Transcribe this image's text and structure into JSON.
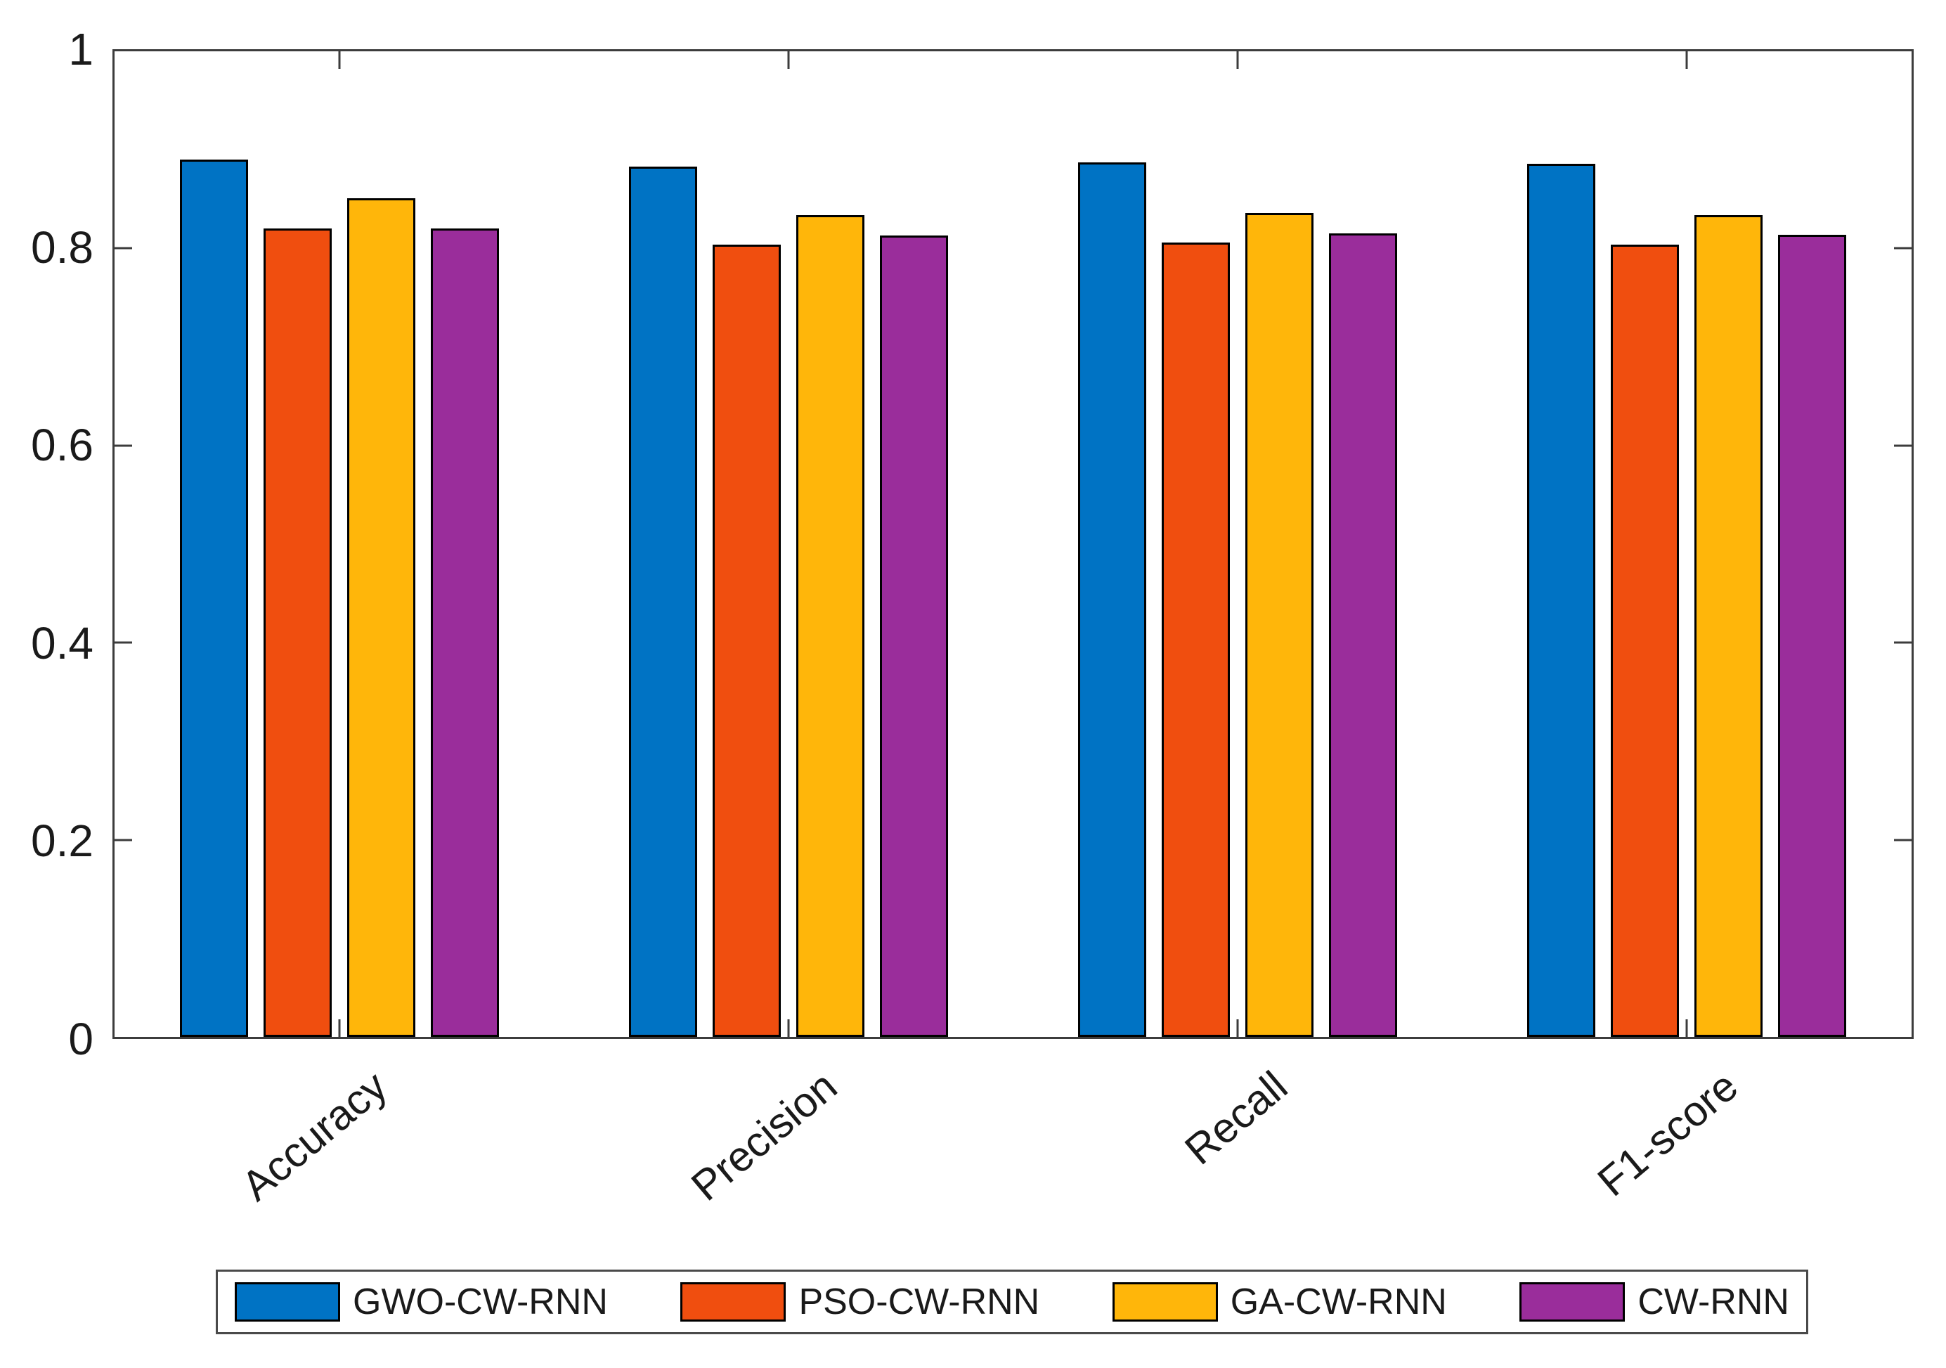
{
  "figure": {
    "background": "#ffffff"
  },
  "chart_data": {
    "type": "bar",
    "title": "",
    "xlabel": "",
    "ylabel": "",
    "categories": [
      "Accuracy",
      "Precision",
      "Recall",
      "F1-score"
    ],
    "series": [
      {
        "name": "GWO-CW-RNN",
        "color": "#0073C4",
        "values": [
          0.89,
          0.883,
          0.887,
          0.886
        ]
      },
      {
        "name": "PSO-CW-RNN",
        "color": "#F04E0F",
        "values": [
          0.82,
          0.804,
          0.806,
          0.804
        ]
      },
      {
        "name": "GA-CW-RNN",
        "color": "#FFB60A",
        "values": [
          0.851,
          0.834,
          0.836,
          0.834
        ]
      },
      {
        "name": "CW-RNN",
        "color": "#9A2D9B",
        "values": [
          0.82,
          0.813,
          0.815,
          0.814
        ]
      }
    ],
    "ylim": [
      0,
      1
    ],
    "yticks": [
      0,
      0.2,
      0.4,
      0.6,
      0.8,
      1
    ],
    "ytick_labels": [
      "0",
      "0.2",
      "0.4",
      "0.6",
      "0.8",
      "1"
    ],
    "grid": false,
    "legend_position": "bottom",
    "legend_orientation": "horizontal",
    "bar_edge_color": "#000000",
    "axis_color": "#3C3C3C",
    "text_color": "#1A1A1A"
  }
}
